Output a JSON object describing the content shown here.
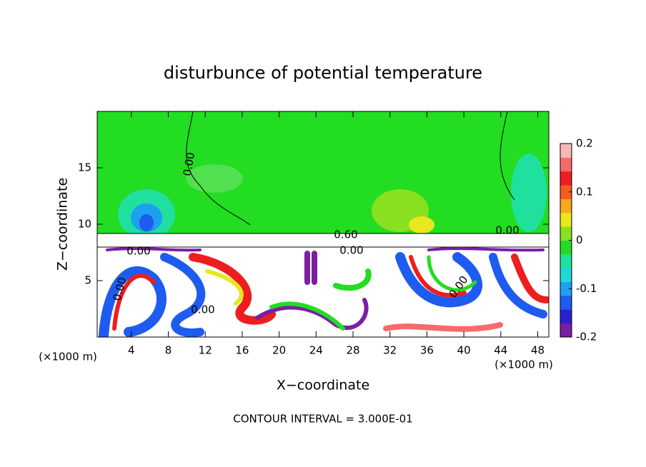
{
  "chart_data": {
    "type": "contour",
    "title": "disturbunce of potential temperature",
    "x_label": "X−coordinate",
    "y_label": "Z−coordinate",
    "x_unit_left": "(×1000 m)",
    "x_unit_right": "(×1000 m)",
    "footer": "CONTOUR INTERVAL = 3.000E-01",
    "xlim": [
      0.3,
      49.2
    ],
    "xticks": [
      4,
      8,
      12,
      16,
      20,
      24,
      28,
      32,
      36,
      40,
      44,
      48
    ],
    "ylim": [
      0,
      20
    ],
    "yticks": [
      5,
      10,
      15
    ],
    "contour_labels": [
      "0.00",
      "0.00",
      "0.60",
      "0.00",
      "0.00",
      "0.00",
      "0.00",
      "0.00"
    ],
    "colorbar": {
      "lim": [
        -0.2,
        0.2
      ],
      "ticks": [
        -0.2,
        -0.1,
        0,
        0.1,
        0.2
      ],
      "colors": [
        "#7a1fa2",
        "#2b1fd0",
        "#1e5cf0",
        "#1ea0f0",
        "#20d8d8",
        "#20e0a0",
        "#22dd22",
        "#88e020",
        "#e8e81e",
        "#f8a81e",
        "#f85a1e",
        "#ee1e1e",
        "#f86a6a",
        "#f8b8b8"
      ]
    }
  }
}
